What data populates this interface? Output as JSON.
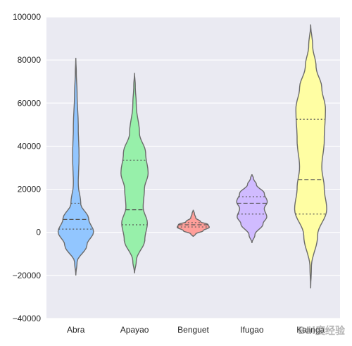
{
  "chart_data": {
    "type": "violin",
    "categories": [
      "Abra",
      "Apayao",
      "Benguet",
      "Ifugao",
      "Kalinga"
    ],
    "ylim": [
      -40000,
      100000
    ],
    "yticks": [
      -40000,
      -20000,
      0,
      20000,
      40000,
      60000,
      80000,
      100000
    ],
    "ytick_labels": [
      "−40000",
      "−20000",
      "0",
      "20000",
      "40000",
      "60000",
      "80000",
      "100000"
    ],
    "grid": true,
    "background": "#eaeaf2",
    "series": [
      {
        "category": "Abra",
        "color": "#92c6ff",
        "min": -20000,
        "max": 81000,
        "q1": 1500,
        "median": 6000,
        "q3": 13500
      },
      {
        "category": "Apayao",
        "color": "#97f0aa",
        "min": -19000,
        "max": 74000,
        "q1": 3500,
        "median": 10500,
        "q3": 33500
      },
      {
        "category": "Benguet",
        "color": "#ff9f9a",
        "min": -2000,
        "max": 10500,
        "q1": 2500,
        "median": 3500,
        "q3": 4500
      },
      {
        "category": "Ifugao",
        "color": "#d0bbff",
        "min": -5000,
        "max": 27000,
        "q1": 8500,
        "median": 13500,
        "q3": 16500
      },
      {
        "category": "Kalinga",
        "color": "#fffea3",
        "min": -26000,
        "max": 96500,
        "q1": 8500,
        "median": 24500,
        "q3": 52500
      }
    ],
    "title": "",
    "xlabel": "",
    "ylabel": ""
  },
  "watermark": "Bai度经验"
}
